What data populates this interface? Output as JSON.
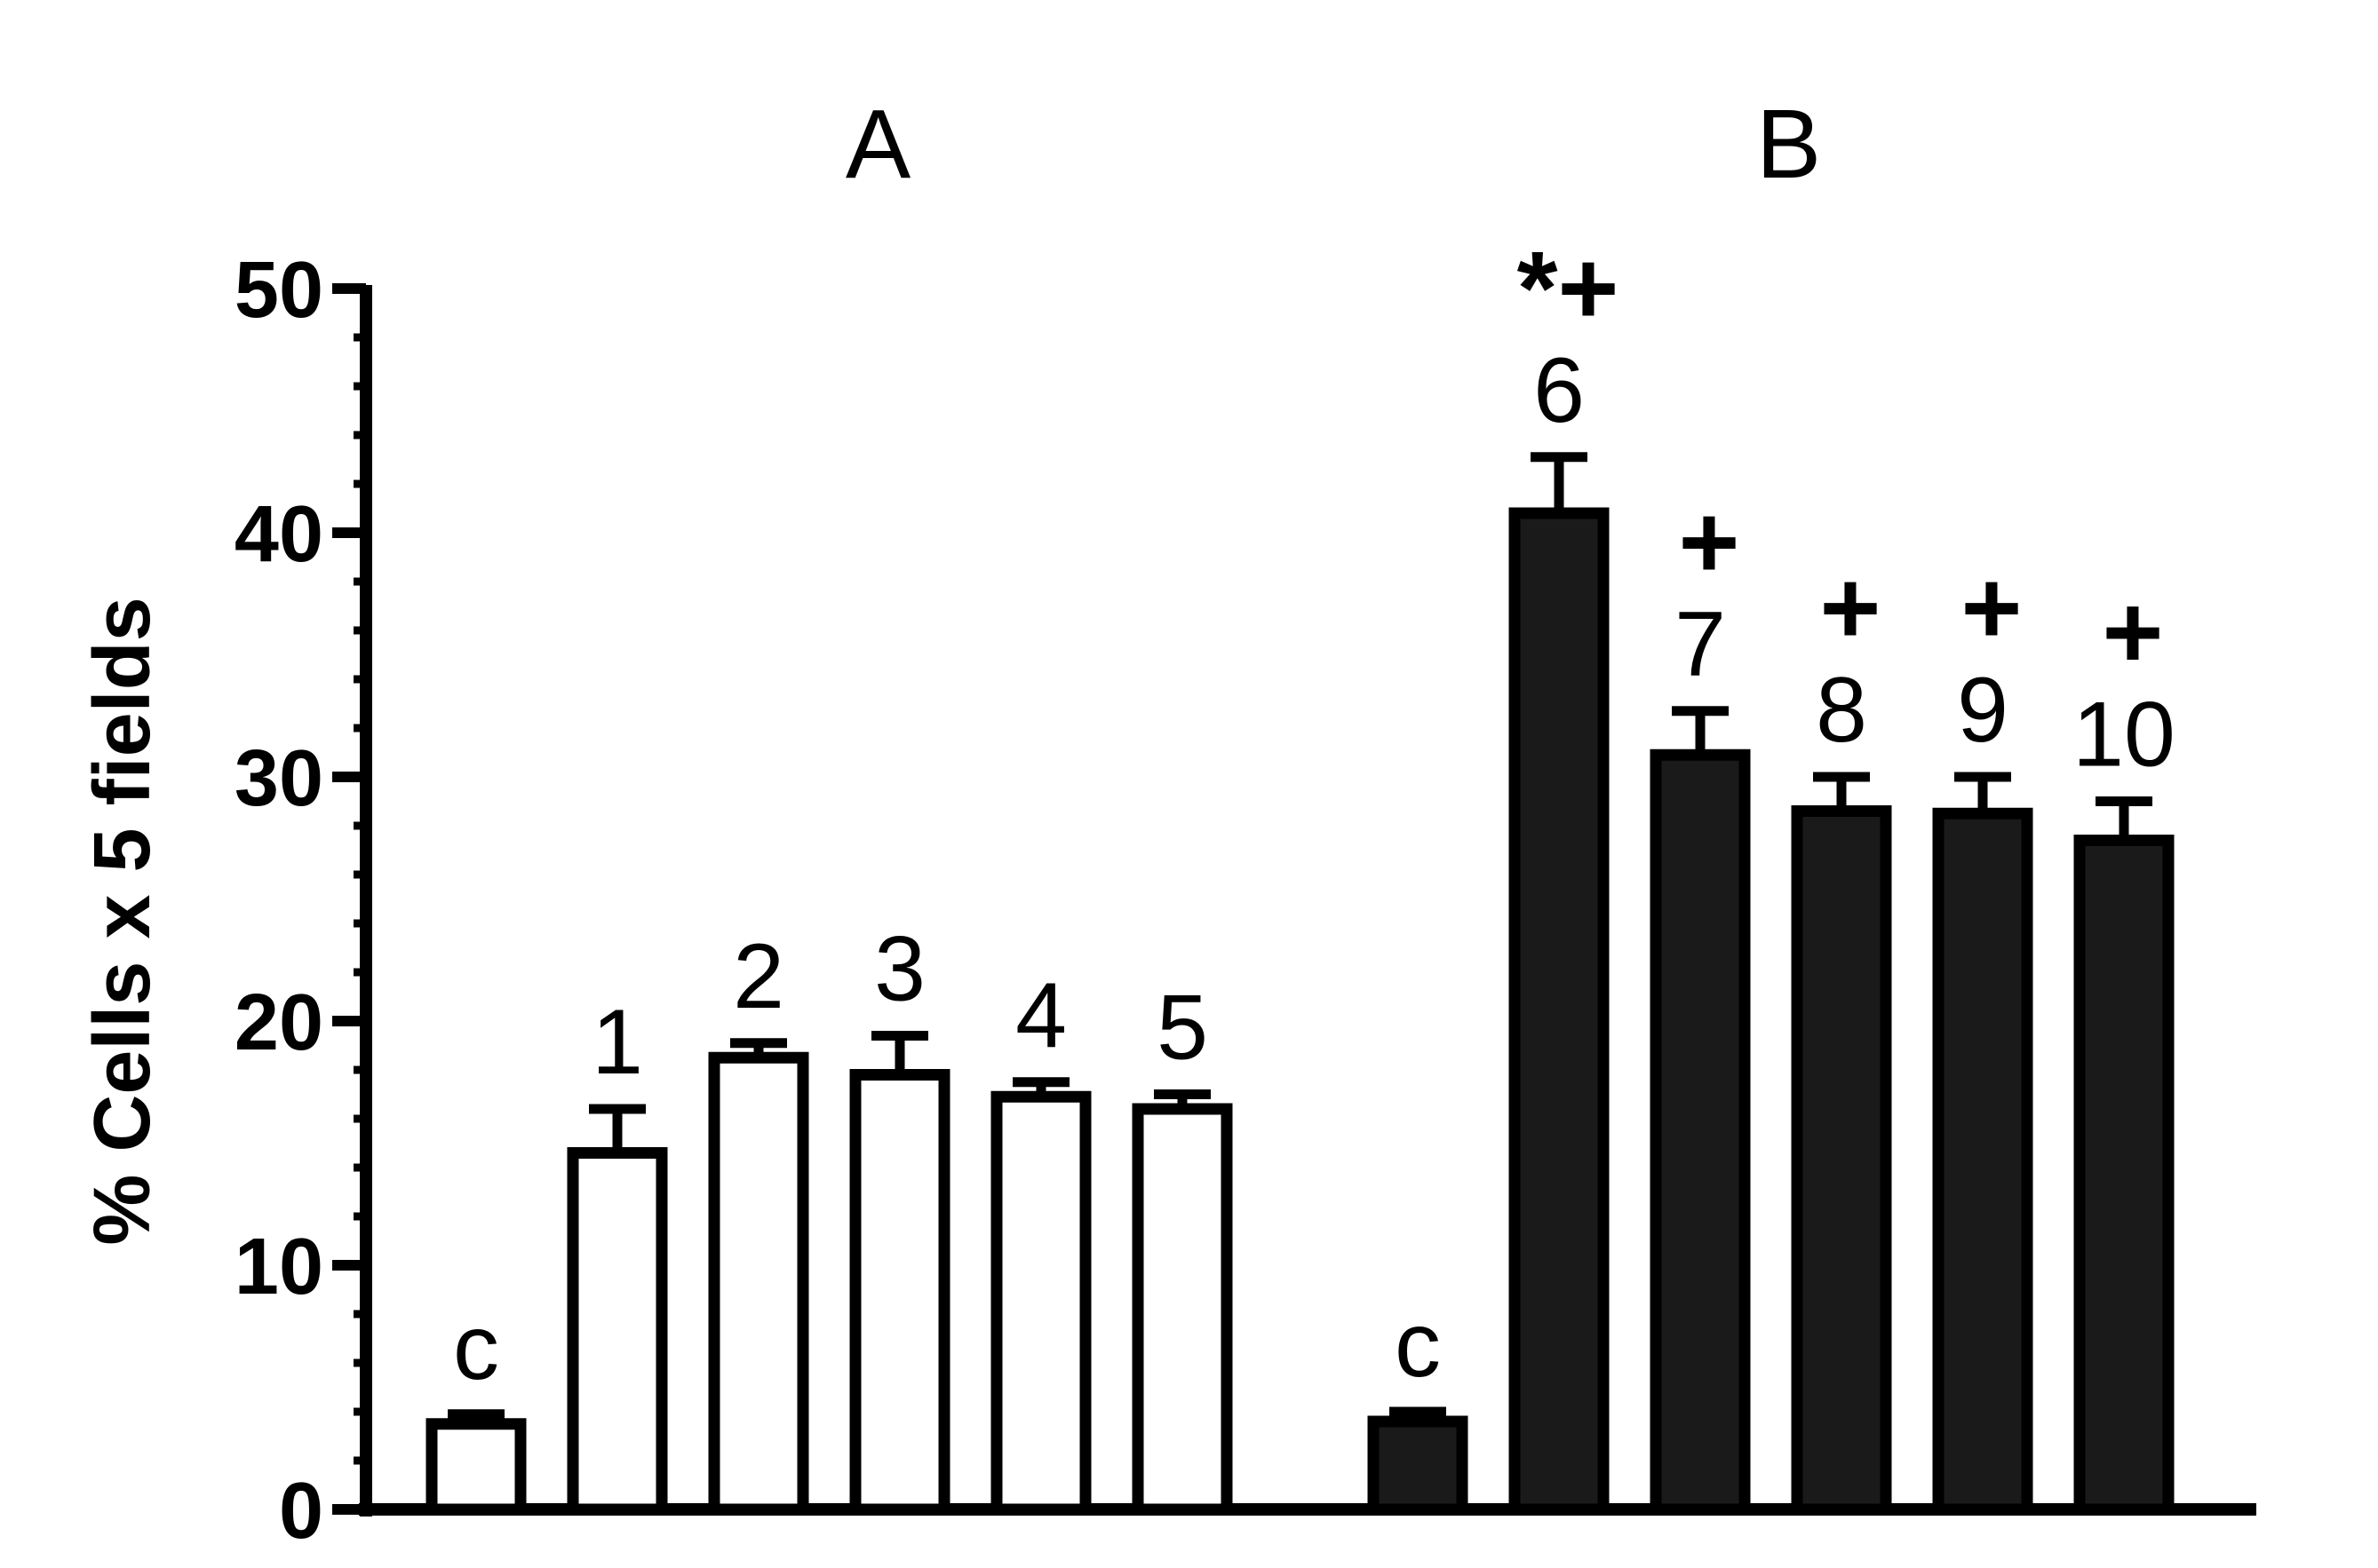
{
  "chart_data": {
    "type": "bar",
    "ylabel": "% Cells x 5 fields",
    "ylim": [
      0,
      50
    ],
    "yticks": [
      0,
      10,
      20,
      30,
      40,
      50
    ],
    "y_minor_step": 2,
    "groups": [
      {
        "label": "A",
        "fill": "#ffffff",
        "bars": [
          {
            "label": "c",
            "value": 3.5,
            "error": 0.4,
            "mark": ""
          },
          {
            "label": "1",
            "value": 14.6,
            "error": 1.8,
            "mark": ""
          },
          {
            "label": "2",
            "value": 18.5,
            "error": 0.6,
            "mark": ""
          },
          {
            "label": "3",
            "value": 17.8,
            "error": 1.6,
            "mark": ""
          },
          {
            "label": "4",
            "value": 16.9,
            "error": 0.6,
            "mark": ""
          },
          {
            "label": "5",
            "value": 16.4,
            "error": 0.6,
            "mark": ""
          }
        ]
      },
      {
        "label": "B",
        "fill": "#1a1a1a",
        "bars": [
          {
            "label": "c",
            "value": 3.6,
            "error": 0.4,
            "mark": ""
          },
          {
            "label": "6",
            "value": 40.8,
            "error": 2.3,
            "mark": "*+"
          },
          {
            "label": "7",
            "value": 30.9,
            "error": 1.8,
            "mark": "+"
          },
          {
            "label": "8",
            "value": 28.6,
            "error": 1.4,
            "mark": "+"
          },
          {
            "label": "9",
            "value": 28.5,
            "error": 1.5,
            "mark": "+"
          },
          {
            "label": "10",
            "value": 27.4,
            "error": 1.6,
            "mark": "+"
          }
        ]
      }
    ]
  }
}
